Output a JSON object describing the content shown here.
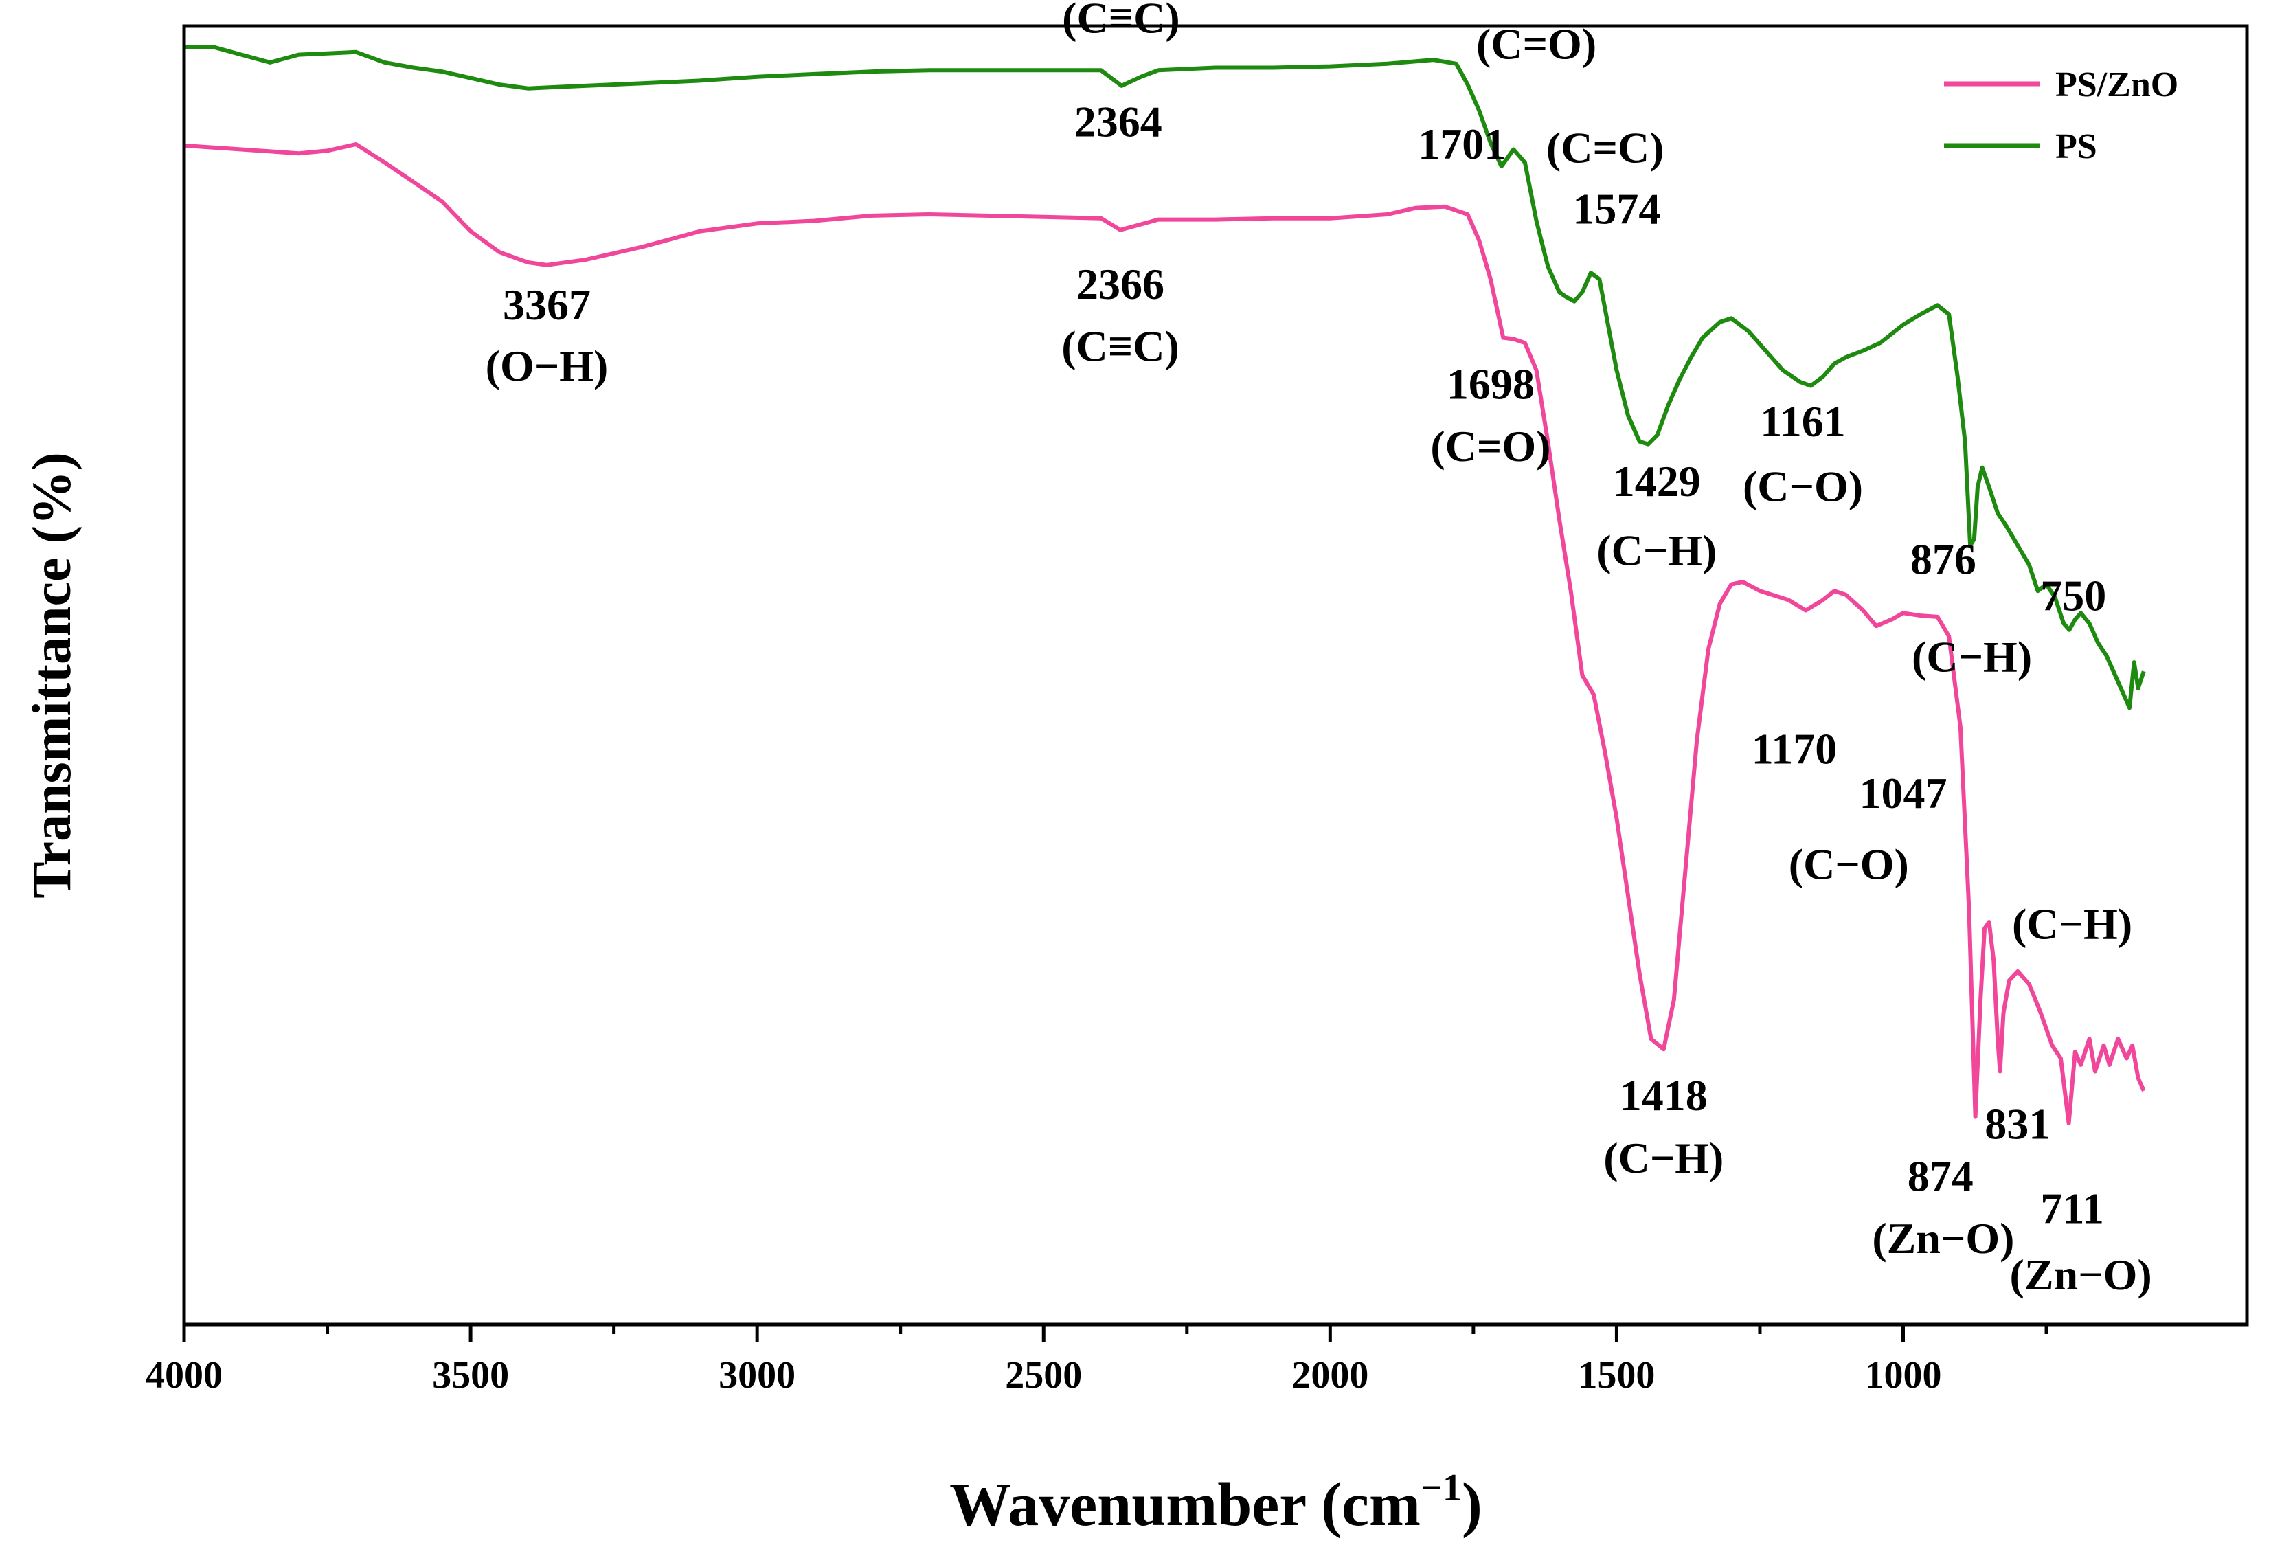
{
  "chart_data": {
    "type": "line",
    "title": "",
    "xlabel": "Wavenumber (cm",
    "xlabel_sup": "−1",
    "xlabel_close": ")",
    "ylabel": "Transmittance (%)",
    "xlim": [
      4000,
      400
    ],
    "ylim": [
      0,
      100
    ],
    "x_ticks": [
      4000,
      3500,
      3000,
      2500,
      2000,
      1500,
      1000
    ],
    "x_tick_labels": [
      "4000",
      "3500",
      "3000",
      "2500",
      "2000",
      "1500",
      "1000"
    ],
    "legend_position": "top-right",
    "series": [
      {
        "name": "PS/ZnO",
        "color": "#f0479b",
        "points": [
          [
            4000,
            90.8
          ],
          [
            3900,
            90.5
          ],
          [
            3800,
            90.2
          ],
          [
            3750,
            90.4
          ],
          [
            3700,
            90.9
          ],
          [
            3650,
            89.5
          ],
          [
            3600,
            88.0
          ],
          [
            3550,
            86.5
          ],
          [
            3500,
            84.2
          ],
          [
            3450,
            82.6
          ],
          [
            3400,
            81.8
          ],
          [
            3367,
            81.6
          ],
          [
            3300,
            82.0
          ],
          [
            3200,
            83.0
          ],
          [
            3100,
            84.2
          ],
          [
            3000,
            84.8
          ],
          [
            2900,
            85.0
          ],
          [
            2800,
            85.4
          ],
          [
            2700,
            85.5
          ],
          [
            2600,
            85.4
          ],
          [
            2500,
            85.3
          ],
          [
            2400,
            85.2
          ],
          [
            2366,
            84.3
          ],
          [
            2300,
            85.1
          ],
          [
            2200,
            85.1
          ],
          [
            2100,
            85.2
          ],
          [
            2000,
            85.2
          ],
          [
            1900,
            85.5
          ],
          [
            1850,
            86.0
          ],
          [
            1800,
            86.1
          ],
          [
            1760,
            85.5
          ],
          [
            1740,
            83.5
          ],
          [
            1720,
            80.5
          ],
          [
            1698,
            76.0
          ],
          [
            1680,
            75.9
          ],
          [
            1660,
            75.6
          ],
          [
            1640,
            73.5
          ],
          [
            1620,
            68.0
          ],
          [
            1600,
            62.0
          ],
          [
            1580,
            56.5
          ],
          [
            1560,
            50.0
          ],
          [
            1540,
            48.5
          ],
          [
            1520,
            44.0
          ],
          [
            1500,
            39.0
          ],
          [
            1480,
            33.0
          ],
          [
            1460,
            27.0
          ],
          [
            1440,
            22.0
          ],
          [
            1418,
            21.2
          ],
          [
            1400,
            25.0
          ],
          [
            1380,
            35.0
          ],
          [
            1360,
            45.0
          ],
          [
            1340,
            52.0
          ],
          [
            1320,
            55.5
          ],
          [
            1300,
            57.0
          ],
          [
            1280,
            57.2
          ],
          [
            1250,
            56.5
          ],
          [
            1200,
            55.8
          ],
          [
            1170,
            55.0
          ],
          [
            1140,
            55.8
          ],
          [
            1120,
            56.5
          ],
          [
            1100,
            56.2
          ],
          [
            1070,
            55.0
          ],
          [
            1047,
            53.8
          ],
          [
            1020,
            54.3
          ],
          [
            1000,
            54.8
          ],
          [
            970,
            54.6
          ],
          [
            940,
            54.5
          ],
          [
            920,
            53.0
          ],
          [
            900,
            46.0
          ],
          [
            885,
            32.0
          ],
          [
            874,
            16.0
          ],
          [
            865,
            25.0
          ],
          [
            858,
            30.5
          ],
          [
            850,
            31.0
          ],
          [
            842,
            28.0
          ],
          [
            835,
            22.0
          ],
          [
            831,
            19.5
          ],
          [
            825,
            24.0
          ],
          [
            815,
            26.5
          ],
          [
            800,
            27.2
          ],
          [
            780,
            26.2
          ],
          [
            760,
            24.0
          ],
          [
            740,
            21.5
          ],
          [
            725,
            20.5
          ],
          [
            711,
            15.5
          ],
          [
            700,
            21.0
          ],
          [
            690,
            20.0
          ],
          [
            675,
            22.0
          ],
          [
            665,
            19.5
          ],
          [
            650,
            21.5
          ],
          [
            640,
            20.0
          ],
          [
            625,
            22.0
          ],
          [
            610,
            20.5
          ],
          [
            600,
            21.5
          ],
          [
            590,
            19.0
          ],
          [
            580,
            18.0
          ]
        ]
      },
      {
        "name": "PS",
        "color": "#1f8a10",
        "points": [
          [
            4000,
            98.4
          ],
          [
            3950,
            98.4
          ],
          [
            3900,
            97.8
          ],
          [
            3850,
            97.2
          ],
          [
            3800,
            97.8
          ],
          [
            3750,
            97.9
          ],
          [
            3700,
            98.0
          ],
          [
            3650,
            97.2
          ],
          [
            3600,
            96.8
          ],
          [
            3550,
            96.5
          ],
          [
            3500,
            96.0
          ],
          [
            3450,
            95.5
          ],
          [
            3400,
            95.2
          ],
          [
            3350,
            95.3
          ],
          [
            3300,
            95.4
          ],
          [
            3200,
            95.6
          ],
          [
            3100,
            95.8
          ],
          [
            3000,
            96.1
          ],
          [
            2900,
            96.3
          ],
          [
            2800,
            96.5
          ],
          [
            2700,
            96.6
          ],
          [
            2600,
            96.6
          ],
          [
            2500,
            96.6
          ],
          [
            2400,
            96.6
          ],
          [
            2364,
            95.4
          ],
          [
            2330,
            96.1
          ],
          [
            2300,
            96.6
          ],
          [
            2200,
            96.8
          ],
          [
            2100,
            96.8
          ],
          [
            2000,
            96.9
          ],
          [
            1900,
            97.1
          ],
          [
            1820,
            97.4
          ],
          [
            1780,
            97.1
          ],
          [
            1760,
            95.5
          ],
          [
            1740,
            93.5
          ],
          [
            1720,
            91.0
          ],
          [
            1701,
            89.2
          ],
          [
            1680,
            90.5
          ],
          [
            1660,
            89.5
          ],
          [
            1640,
            85.0
          ],
          [
            1620,
            81.5
          ],
          [
            1600,
            79.5
          ],
          [
            1590,
            79.2
          ],
          [
            1574,
            78.8
          ],
          [
            1560,
            79.5
          ],
          [
            1545,
            81.0
          ],
          [
            1530,
            80.5
          ],
          [
            1515,
            77.0
          ],
          [
            1500,
            73.5
          ],
          [
            1480,
            70.0
          ],
          [
            1460,
            68.0
          ],
          [
            1445,
            67.8
          ],
          [
            1429,
            68.5
          ],
          [
            1410,
            70.8
          ],
          [
            1390,
            72.8
          ],
          [
            1370,
            74.5
          ],
          [
            1350,
            76.0
          ],
          [
            1320,
            77.2
          ],
          [
            1300,
            77.5
          ],
          [
            1270,
            76.5
          ],
          [
            1240,
            75.0
          ],
          [
            1210,
            73.5
          ],
          [
            1180,
            72.6
          ],
          [
            1161,
            72.3
          ],
          [
            1140,
            73.0
          ],
          [
            1120,
            74.0
          ],
          [
            1100,
            74.5
          ],
          [
            1070,
            75.0
          ],
          [
            1040,
            75.6
          ],
          [
            1000,
            77.0
          ],
          [
            970,
            77.8
          ],
          [
            940,
            78.5
          ],
          [
            920,
            77.8
          ],
          [
            905,
            73.0
          ],
          [
            892,
            68.0
          ],
          [
            883,
            60.0
          ],
          [
            876,
            60.5
          ],
          [
            870,
            64.5
          ],
          [
            862,
            66.0
          ],
          [
            850,
            64.5
          ],
          [
            835,
            62.5
          ],
          [
            820,
            61.5
          ],
          [
            800,
            60.0
          ],
          [
            780,
            58.5
          ],
          [
            765,
            56.5
          ],
          [
            750,
            57.0
          ],
          [
            735,
            56.0
          ],
          [
            720,
            54.0
          ],
          [
            710,
            53.5
          ],
          [
            700,
            54.3
          ],
          [
            690,
            54.8
          ],
          [
            675,
            54.0
          ],
          [
            660,
            52.5
          ],
          [
            645,
            51.5
          ],
          [
            630,
            50.0
          ],
          [
            615,
            48.5
          ],
          [
            605,
            47.5
          ],
          [
            597,
            51.0
          ],
          [
            590,
            49.0
          ],
          [
            580,
            50.3
          ]
        ]
      }
    ],
    "annotations": [
      {
        "id": "ps-2364-label",
        "series": "PS",
        "text": "(C≡C)",
        "x": 2365,
        "y": 99.5,
        "anchor": "middle"
      },
      {
        "id": "ps-2364-value",
        "series": "PS",
        "text": "2364",
        "x": 2370,
        "y": 91.5,
        "anchor": "middle"
      },
      {
        "id": "ps-1701-value",
        "series": "PS",
        "text": "1701",
        "x": 1770,
        "y": 89.8,
        "anchor": "middle"
      },
      {
        "id": "ps-1701-label",
        "series": "PS",
        "text": "(C=O)",
        "x": 1640,
        "y": 97.5,
        "anchor": "middle"
      },
      {
        "id": "ps-1574-label",
        "series": "PS",
        "text": "(C=C)",
        "x": 1520,
        "y": 89.5,
        "anchor": "middle"
      },
      {
        "id": "ps-1574-value",
        "series": "PS",
        "text": "1574",
        "x": 1500,
        "y": 84.8,
        "anchor": "middle"
      },
      {
        "id": "ps-1429-value",
        "series": "PS",
        "text": "1429",
        "x": 1430,
        "y": 63.8,
        "anchor": "middle"
      },
      {
        "id": "ps-1429-label",
        "series": "PS",
        "text": "(C−H)",
        "x": 1430,
        "y": 58.5,
        "anchor": "middle"
      },
      {
        "id": "ps-1161-value",
        "series": "PS",
        "text": "1161",
        "x": 1175,
        "y": 68.4,
        "anchor": "middle"
      },
      {
        "id": "ps-1161-label",
        "series": "PS",
        "text": "(C−O)",
        "x": 1175,
        "y": 63.4,
        "anchor": "middle"
      },
      {
        "id": "ps-876-value",
        "series": "PS",
        "text": "876",
        "x": 930,
        "y": 57.8,
        "anchor": "middle"
      },
      {
        "id": "ps-876-label",
        "series": "PS",
        "text": "(C−H)",
        "x": 880,
        "y": 50.3,
        "anchor": "middle"
      },
      {
        "id": "ps-750-value",
        "series": "PS",
        "text": "750",
        "x": 703,
        "y": 55.0,
        "anchor": "middle"
      },
      {
        "id": "pszno-3367-value",
        "series": "PS/ZnO",
        "text": "3367",
        "x": 3367,
        "y": 77.4,
        "anchor": "middle"
      },
      {
        "id": "pszno-3367-label",
        "series": "PS/ZnO",
        "text": "(O−H)",
        "x": 3367,
        "y": 72.7,
        "anchor": "middle"
      },
      {
        "id": "pszno-2366-value",
        "series": "PS/ZnO",
        "text": "2366",
        "x": 2366,
        "y": 79.0,
        "anchor": "middle"
      },
      {
        "id": "pszno-2366-label",
        "series": "PS/ZnO",
        "text": "(C≡C)",
        "x": 2366,
        "y": 74.2,
        "anchor": "middle"
      },
      {
        "id": "pszno-1698-value",
        "series": "PS/ZnO",
        "text": "1698",
        "x": 1720,
        "y": 71.3,
        "anchor": "middle"
      },
      {
        "id": "pszno-1698-label",
        "series": "PS/ZnO",
        "text": "(C=O)",
        "x": 1720,
        "y": 66.5,
        "anchor": "middle"
      },
      {
        "id": "pszno-1418-value",
        "series": "PS/ZnO",
        "text": "1418",
        "x": 1418,
        "y": 16.5,
        "anchor": "middle"
      },
      {
        "id": "pszno-1418-label",
        "series": "PS/ZnO",
        "text": "(C−H)",
        "x": 1418,
        "y": 11.7,
        "anchor": "middle"
      },
      {
        "id": "pszno-1170-value",
        "series": "PS/ZnO",
        "text": "1170",
        "x": 1190,
        "y": 43.2,
        "anchor": "middle"
      },
      {
        "id": "pszno-1047-value",
        "series": "PS/ZnO",
        "text": "1047",
        "x": 1000,
        "y": 39.8,
        "anchor": "middle"
      },
      {
        "id": "pszno-co-label",
        "series": "PS/ZnO",
        "text": "(C−O)",
        "x": 1095,
        "y": 34.3,
        "anchor": "middle"
      },
      {
        "id": "pszno-ch-label",
        "series": "PS/ZnO",
        "text": "(C−H)",
        "x": 705,
        "y": 29.7,
        "anchor": "middle"
      },
      {
        "id": "pszno-831-value",
        "series": "PS/ZnO",
        "text": "831",
        "x": 800,
        "y": 14.3,
        "anchor": "middle"
      },
      {
        "id": "pszno-874-value",
        "series": "PS/ZnO",
        "text": "874",
        "x": 935,
        "y": 10.3,
        "anchor": "middle"
      },
      {
        "id": "pszno-874-label",
        "series": "PS/ZnO",
        "text": "(Zn−O)",
        "x": 930,
        "y": 5.5,
        "anchor": "middle"
      },
      {
        "id": "pszno-711-value",
        "series": "PS/ZnO",
        "text": "711",
        "x": 705,
        "y": 7.8,
        "anchor": "middle"
      },
      {
        "id": "pszno-711-label",
        "series": "PS/ZnO",
        "text": "(Zn−O)",
        "x": 690,
        "y": 2.7,
        "anchor": "middle"
      }
    ]
  }
}
